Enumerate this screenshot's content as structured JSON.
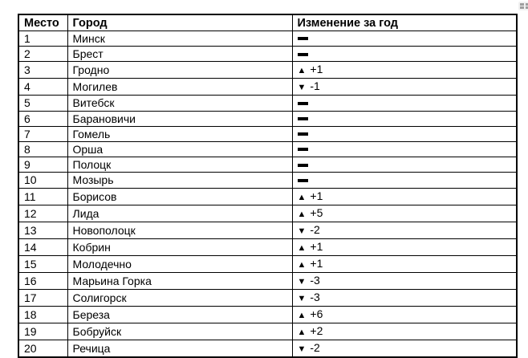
{
  "colors": {
    "background": "#ffffff",
    "border": "#000000",
    "text": "#000000",
    "handle_bg": "#f1f1f1",
    "handle_dot": "#9e9e9e"
  },
  "icons": {
    "table_handle": "table-grid-handle",
    "no_change": "heavy-dash",
    "up": "black-triangle-up",
    "down": "black-triangle-down"
  },
  "table": {
    "change_symbols": {
      "up": "▲",
      "down": "▼"
    },
    "columns": [
      {
        "key": "place",
        "label": "Место"
      },
      {
        "key": "city",
        "label": "Город"
      },
      {
        "key": "change",
        "label": "Изменение за год"
      }
    ],
    "rows": [
      {
        "place": "1",
        "city": "Минск",
        "change": {
          "dir": "same",
          "label": ""
        }
      },
      {
        "place": "2",
        "city": "Брест",
        "change": {
          "dir": "same",
          "label": ""
        }
      },
      {
        "place": "3",
        "city": "Гродно",
        "change": {
          "dir": "up",
          "label": "+1"
        }
      },
      {
        "place": "4",
        "city": "Могилев",
        "change": {
          "dir": "down",
          "label": "-1"
        }
      },
      {
        "place": "5",
        "city": "Витебск",
        "change": {
          "dir": "same",
          "label": ""
        }
      },
      {
        "place": "6",
        "city": "Барановичи",
        "change": {
          "dir": "same",
          "label": ""
        }
      },
      {
        "place": "7",
        "city": "Гомель",
        "change": {
          "dir": "same",
          "label": ""
        }
      },
      {
        "place": "8",
        "city": "Орша",
        "change": {
          "dir": "same",
          "label": ""
        }
      },
      {
        "place": "9",
        "city": "Полоцк",
        "change": {
          "dir": "same",
          "label": ""
        }
      },
      {
        "place": "10",
        "city": "Мозырь",
        "change": {
          "dir": "same",
          "label": ""
        }
      },
      {
        "place": "11",
        "city": "Борисов",
        "change": {
          "dir": "up",
          "label": "+1"
        }
      },
      {
        "place": "12",
        "city": "Лида",
        "change": {
          "dir": "up",
          "label": "+5"
        }
      },
      {
        "place": "13",
        "city": "Новополоцк",
        "change": {
          "dir": "down",
          "label": "-2"
        }
      },
      {
        "place": "14",
        "city": "Кобрин",
        "change": {
          "dir": "up",
          "label": "+1"
        }
      },
      {
        "place": "15",
        "city": "Молодечно",
        "change": {
          "dir": "up",
          "label": "+1"
        }
      },
      {
        "place": "16",
        "city": "Марьина Горка",
        "change": {
          "dir": "down",
          "label": "-3"
        }
      },
      {
        "place": "17",
        "city": "Солигорск",
        "change": {
          "dir": "down",
          "label": "-3"
        }
      },
      {
        "place": "18",
        "city": "Береза",
        "change": {
          "dir": "up",
          "label": "+6"
        }
      },
      {
        "place": "19",
        "city": "Бобруйск",
        "change": {
          "dir": "up",
          "label": "+2"
        }
      },
      {
        "place": "20",
        "city": "Речица",
        "change": {
          "dir": "down",
          "label": "-2"
        }
      }
    ]
  }
}
